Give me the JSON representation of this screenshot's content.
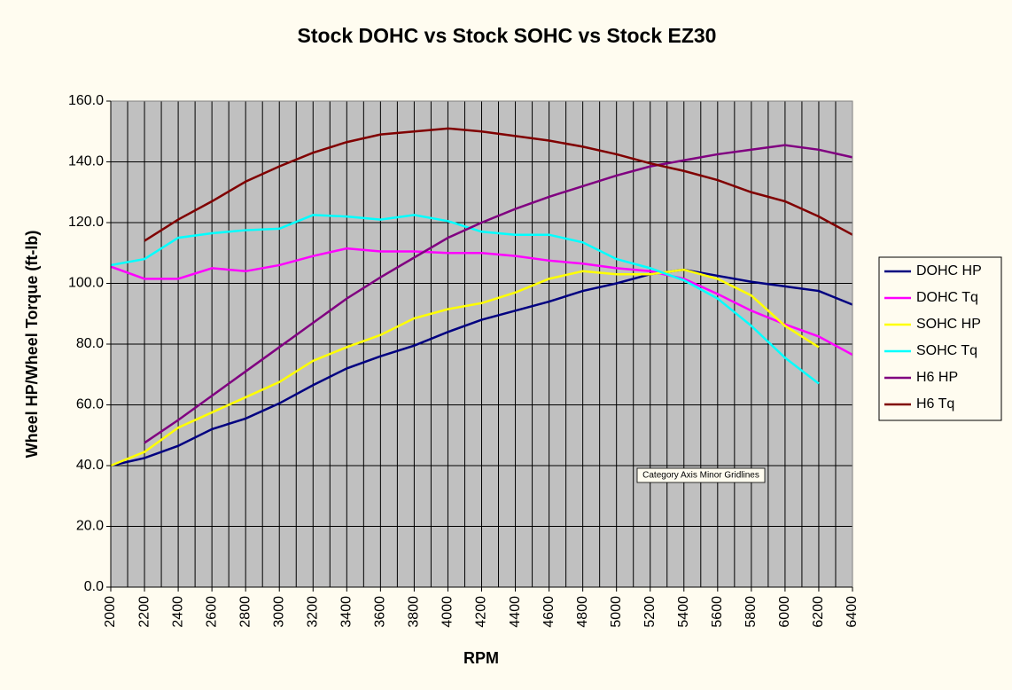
{
  "chart_data": {
    "type": "line",
    "title": "Stock DOHC vs Stock SOHC vs Stock EZ30",
    "x_label": "RPM",
    "y_label": "Wheel HP/Wheel Torque (ft-lb)",
    "annotation": "Category Axis Minor Gridlines",
    "categories": [
      "2000",
      "2200",
      "2400",
      "2600",
      "2800",
      "3000",
      "3200",
      "3400",
      "3600",
      "3800",
      "4000",
      "4200",
      "4400",
      "4600",
      "4800",
      "5000",
      "5200",
      "5400",
      "5600",
      "5800",
      "6000",
      "6200",
      "6400"
    ],
    "ylim": [
      0,
      160
    ],
    "yticks": [
      {
        "value": 0,
        "label": "0.0"
      },
      {
        "value": 20,
        "label": "20.0"
      },
      {
        "value": 40,
        "label": "40.0"
      },
      {
        "value": 60,
        "label": "60.0"
      },
      {
        "value": 80,
        "label": "80.0"
      },
      {
        "value": 100,
        "label": "100.0"
      },
      {
        "value": 120,
        "label": "120.0"
      },
      {
        "value": 140,
        "label": "140.0"
      },
      {
        "value": 160,
        "label": "160.0"
      }
    ],
    "grid": true,
    "minor_x_grid": true,
    "legend": "right",
    "series": [
      {
        "name": "DOHC HP",
        "color": "#000080",
        "values": [
          40,
          42.5,
          46.5,
          52,
          55.5,
          60.5,
          66.5,
          72,
          76,
          79.5,
          84,
          88,
          91,
          94,
          97.5,
          100,
          103,
          104.5,
          102.5,
          100.5,
          99,
          97.5,
          93
        ]
      },
      {
        "name": "DOHC Tq",
        "color": "#ff00ff",
        "values": [
          105.5,
          101.5,
          101.5,
          105,
          104,
          106,
          109,
          111.5,
          110.5,
          110.5,
          110,
          110,
          109,
          107.5,
          106.5,
          105,
          104,
          101.5,
          96.5,
          91,
          86.5,
          82.5,
          76.5
        ]
      },
      {
        "name": "SOHC HP",
        "color": "#ffff00",
        "values": [
          40,
          44.5,
          52.5,
          57.5,
          62.5,
          67.5,
          74.5,
          79,
          83,
          88.5,
          91.5,
          93.5,
          97,
          101.5,
          104,
          103,
          103,
          104.5,
          101.5,
          96,
          86,
          79,
          null
        ]
      },
      {
        "name": "SOHC Tq",
        "color": "#00ffff",
        "values": [
          106,
          108,
          115,
          116.5,
          117.5,
          118,
          122.5,
          122,
          121,
          122.5,
          120.5,
          117,
          116,
          116,
          113.5,
          108,
          105,
          101,
          95,
          86,
          75.5,
          67,
          null
        ]
      },
      {
        "name": "H6 HP",
        "color": "#800080",
        "values": [
          null,
          47.5,
          55,
          63,
          71,
          79,
          87,
          95,
          102,
          108.5,
          115,
          120,
          124.5,
          128.5,
          132,
          135.5,
          138.5,
          140.5,
          142.5,
          144,
          145.5,
          144,
          141.5
        ]
      },
      {
        "name": "H6 Tq",
        "color": "#800000",
        "values": [
          null,
          114,
          121,
          127,
          133.5,
          138.5,
          143,
          146.5,
          149,
          150,
          151,
          150,
          148.5,
          147,
          145,
          142.5,
          139.5,
          137,
          134,
          130,
          127,
          122,
          116
        ]
      }
    ]
  }
}
